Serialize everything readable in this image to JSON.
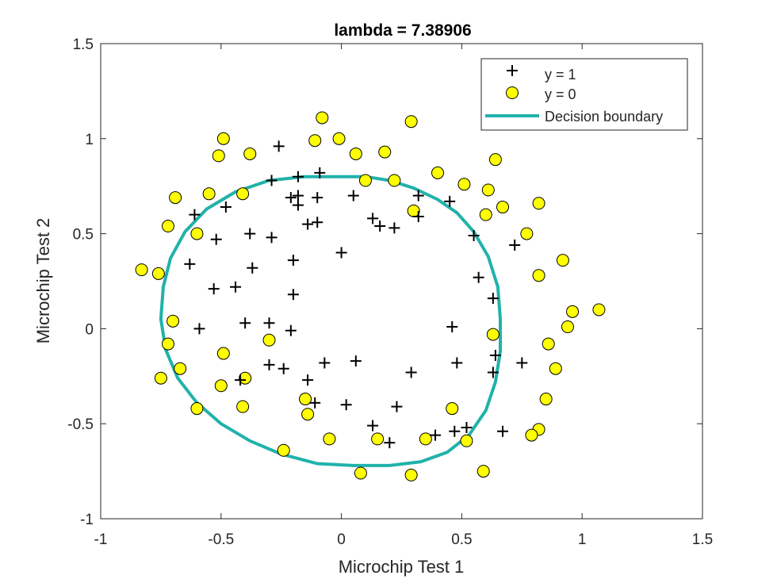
{
  "chart_data": {
    "type": "scatter",
    "title": "lambda = 7.38906",
    "xlabel": "Microchip Test 1",
    "ylabel": "Microchip Test 2",
    "xlim": [
      -1,
      1.5
    ],
    "ylim": [
      -1,
      1.5
    ],
    "xticks": [
      -1,
      -0.5,
      0,
      0.5,
      1,
      1.5
    ],
    "yticks": [
      -1,
      -0.5,
      0,
      0.5,
      1,
      1.5
    ],
    "xtick_labels": [
      "-1",
      "-0.5",
      "0",
      "0.5",
      "1",
      "1.5"
    ],
    "ytick_labels": [
      "-1",
      "-0.5",
      "0",
      "0.5",
      "1",
      "1.5"
    ],
    "grid": false,
    "legend_position": "top-right",
    "legend": [
      "y = 1",
      "y = 0",
      "Decision boundary"
    ],
    "colors": {
      "positive": "#000000",
      "negative_fill": "#ffff00",
      "negative_edge": "#000000",
      "boundary": "#20b2aa"
    },
    "series": [
      {
        "name": "y = 1",
        "marker": "plus",
        "points": [
          [
            -0.26,
            0.96
          ],
          [
            -0.09,
            0.82
          ],
          [
            -0.29,
            0.78
          ],
          [
            -0.18,
            0.8
          ],
          [
            -0.21,
            0.69
          ],
          [
            -0.18,
            0.7
          ],
          [
            -0.1,
            0.69
          ],
          [
            0.05,
            0.7
          ],
          [
            -0.61,
            0.6
          ],
          [
            -0.48,
            0.64
          ],
          [
            -0.18,
            0.65
          ],
          [
            -0.52,
            0.47
          ],
          [
            -0.38,
            0.5
          ],
          [
            -0.29,
            0.48
          ],
          [
            -0.14,
            0.55
          ],
          [
            -0.1,
            0.56
          ],
          [
            0.13,
            0.58
          ],
          [
            0.16,
            0.54
          ],
          [
            0.22,
            0.53
          ],
          [
            0.32,
            0.59
          ],
          [
            0.32,
            0.7
          ],
          [
            0.45,
            0.67
          ],
          [
            0.55,
            0.49
          ],
          [
            0.72,
            0.44
          ],
          [
            -0.63,
            0.34
          ],
          [
            -0.2,
            0.36
          ],
          [
            -0.37,
            0.32
          ],
          [
            -0.0,
            0.4
          ],
          [
            -0.53,
            0.21
          ],
          [
            -0.44,
            0.22
          ],
          [
            -0.2,
            0.18
          ],
          [
            0.57,
            0.27
          ],
          [
            0.63,
            0.16
          ],
          [
            -0.59,
            0.0
          ],
          [
            -0.4,
            0.03
          ],
          [
            -0.3,
            0.03
          ],
          [
            -0.21,
            -0.01
          ],
          [
            0.46,
            0.01
          ],
          [
            0.64,
            -0.14
          ],
          [
            -0.3,
            -0.19
          ],
          [
            -0.24,
            -0.21
          ],
          [
            -0.07,
            -0.18
          ],
          [
            0.06,
            -0.17
          ],
          [
            0.29,
            -0.23
          ],
          [
            0.48,
            -0.18
          ],
          [
            0.63,
            -0.23
          ],
          [
            0.75,
            -0.18
          ],
          [
            -0.42,
            -0.27
          ],
          [
            -0.14,
            -0.27
          ],
          [
            -0.11,
            -0.39
          ],
          [
            0.02,
            -0.4
          ],
          [
            0.23,
            -0.41
          ],
          [
            0.13,
            -0.51
          ],
          [
            0.2,
            -0.6
          ],
          [
            0.39,
            -0.56
          ],
          [
            0.47,
            -0.54
          ],
          [
            0.52,
            -0.52
          ],
          [
            0.67,
            -0.54
          ]
        ]
      },
      {
        "name": "y = 0",
        "marker": "circle",
        "points": [
          [
            -0.08,
            1.11
          ],
          [
            0.29,
            1.09
          ],
          [
            -0.49,
            1.0
          ],
          [
            -0.11,
            0.99
          ],
          [
            -0.01,
            1.0
          ],
          [
            -0.51,
            0.91
          ],
          [
            -0.38,
            0.92
          ],
          [
            0.06,
            0.92
          ],
          [
            0.18,
            0.93
          ],
          [
            0.64,
            0.89
          ],
          [
            0.4,
            0.82
          ],
          [
            0.1,
            0.78
          ],
          [
            0.22,
            0.78
          ],
          [
            0.51,
            0.76
          ],
          [
            -0.69,
            0.69
          ],
          [
            -0.55,
            0.71
          ],
          [
            -0.41,
            0.71
          ],
          [
            0.61,
            0.73
          ],
          [
            0.82,
            0.66
          ],
          [
            0.67,
            0.64
          ],
          [
            0.3,
            0.62
          ],
          [
            0.6,
            0.6
          ],
          [
            -0.72,
            0.54
          ],
          [
            -0.6,
            0.5
          ],
          [
            0.77,
            0.5
          ],
          [
            -0.83,
            0.31
          ],
          [
            -0.76,
            0.29
          ],
          [
            0.92,
            0.36
          ],
          [
            0.82,
            0.28
          ],
          [
            0.96,
            0.09
          ],
          [
            1.07,
            0.1
          ],
          [
            -0.7,
            0.04
          ],
          [
            0.94,
            0.01
          ],
          [
            0.63,
            -0.03
          ],
          [
            -0.72,
            -0.08
          ],
          [
            -0.3,
            -0.06
          ],
          [
            0.86,
            -0.08
          ],
          [
            -0.49,
            -0.13
          ],
          [
            -0.67,
            -0.21
          ],
          [
            0.89,
            -0.21
          ],
          [
            -0.75,
            -0.26
          ],
          [
            -0.4,
            -0.26
          ],
          [
            -0.5,
            -0.3
          ],
          [
            -0.15,
            -0.37
          ],
          [
            0.85,
            -0.37
          ],
          [
            -0.6,
            -0.42
          ],
          [
            -0.41,
            -0.41
          ],
          [
            -0.14,
            -0.45
          ],
          [
            0.46,
            -0.42
          ],
          [
            0.82,
            -0.53
          ],
          [
            0.79,
            -0.56
          ],
          [
            -0.24,
            -0.64
          ],
          [
            -0.05,
            -0.58
          ],
          [
            0.15,
            -0.58
          ],
          [
            0.35,
            -0.58
          ],
          [
            0.52,
            -0.59
          ],
          [
            0.59,
            -0.75
          ],
          [
            0.08,
            -0.76
          ],
          [
            0.29,
            -0.77
          ]
        ]
      },
      {
        "name": "Decision boundary",
        "marker": "line",
        "points": [
          [
            -0.05,
            0.8
          ],
          [
            0.1,
            0.8
          ],
          [
            0.2,
            0.78
          ],
          [
            0.3,
            0.74
          ],
          [
            0.4,
            0.68
          ],
          [
            0.48,
            0.61
          ],
          [
            0.55,
            0.51
          ],
          [
            0.61,
            0.38
          ],
          [
            0.65,
            0.22
          ],
          [
            0.66,
            0.05
          ],
          [
            0.66,
            -0.12
          ],
          [
            0.64,
            -0.28
          ],
          [
            0.6,
            -0.43
          ],
          [
            0.53,
            -0.56
          ],
          [
            0.44,
            -0.65
          ],
          [
            0.33,
            -0.7
          ],
          [
            0.2,
            -0.72
          ],
          [
            0.05,
            -0.72
          ],
          [
            -0.1,
            -0.71
          ],
          [
            -0.25,
            -0.66
          ],
          [
            -0.38,
            -0.59
          ],
          [
            -0.5,
            -0.5
          ],
          [
            -0.6,
            -0.39
          ],
          [
            -0.68,
            -0.26
          ],
          [
            -0.73,
            -0.11
          ],
          [
            -0.75,
            0.05
          ],
          [
            -0.74,
            0.22
          ],
          [
            -0.71,
            0.37
          ],
          [
            -0.65,
            0.51
          ],
          [
            -0.56,
            0.63
          ],
          [
            -0.44,
            0.72
          ],
          [
            -0.3,
            0.78
          ],
          [
            -0.15,
            0.8
          ],
          [
            -0.05,
            0.8
          ]
        ]
      }
    ]
  }
}
